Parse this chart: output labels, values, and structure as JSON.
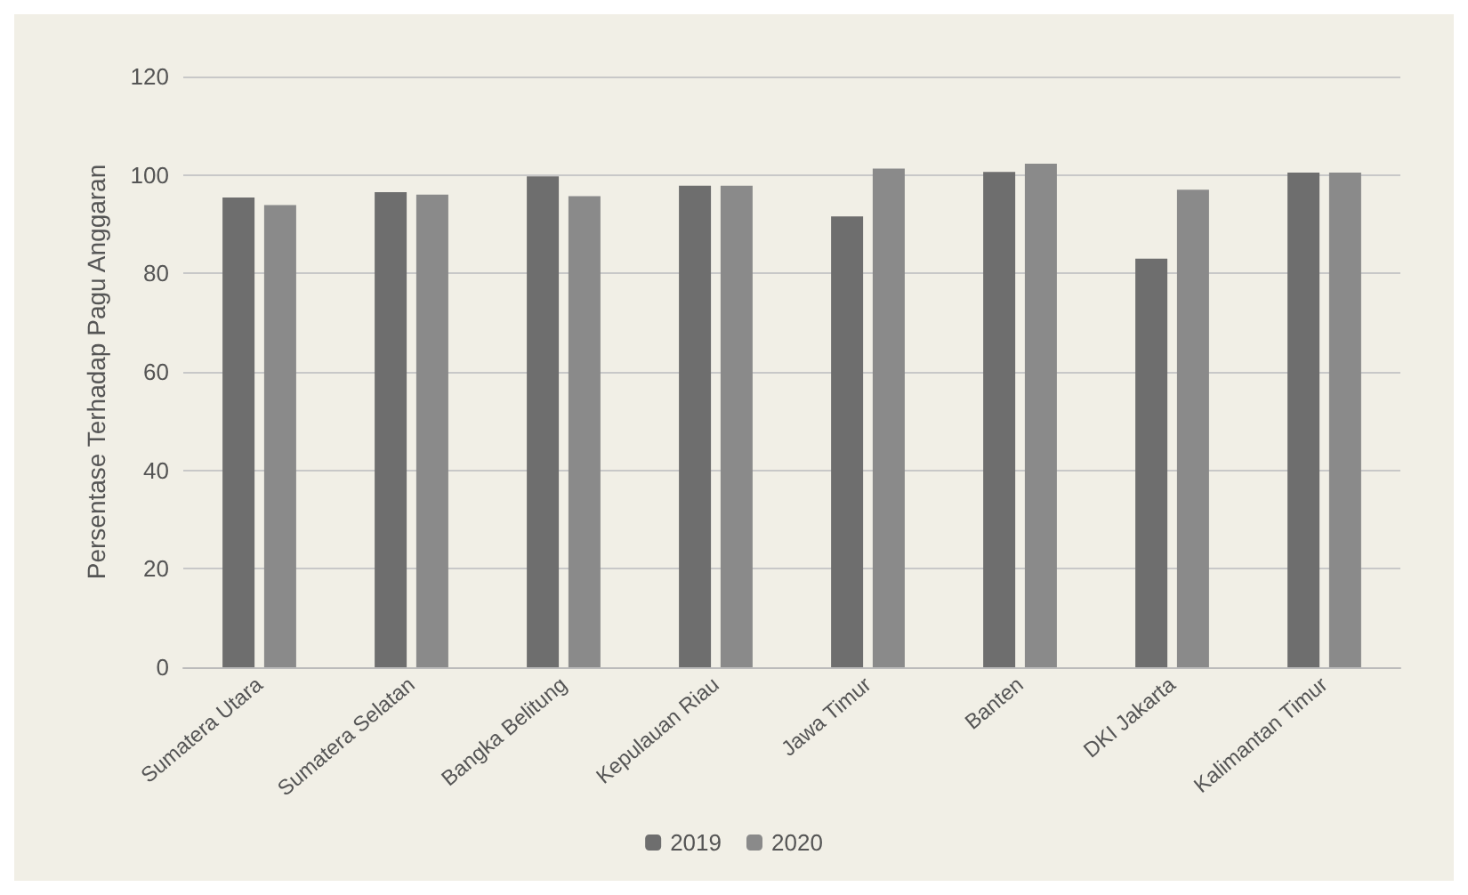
{
  "chart_data": {
    "type": "bar",
    "ylabel": "Persentase Terhadap Pagu Anggaran",
    "categories": [
      "Sumatera Utara",
      "Sumatera Selatan",
      "Bangka Belitung",
      "Kepulauan Riau",
      "Jawa Timur",
      "Banten",
      "DKI Jakarta",
      "Kalimantan Timur"
    ],
    "series": [
      {
        "name": "2019",
        "color": "#6e6e6e",
        "values": [
          95.4,
          96.5,
          99.7,
          97.8,
          91.6,
          100.6,
          83,
          100.5
        ]
      },
      {
        "name": "2020",
        "color": "#8a8a8a",
        "values": [
          93.9,
          96,
          95.7,
          97.8,
          101.3,
          102.3,
          97,
          100.5
        ]
      }
    ],
    "ylim": [
      0,
      120
    ],
    "yticks": [
      0,
      20,
      40,
      60,
      80,
      100,
      120
    ],
    "grid": "y",
    "legend": "bottom"
  }
}
